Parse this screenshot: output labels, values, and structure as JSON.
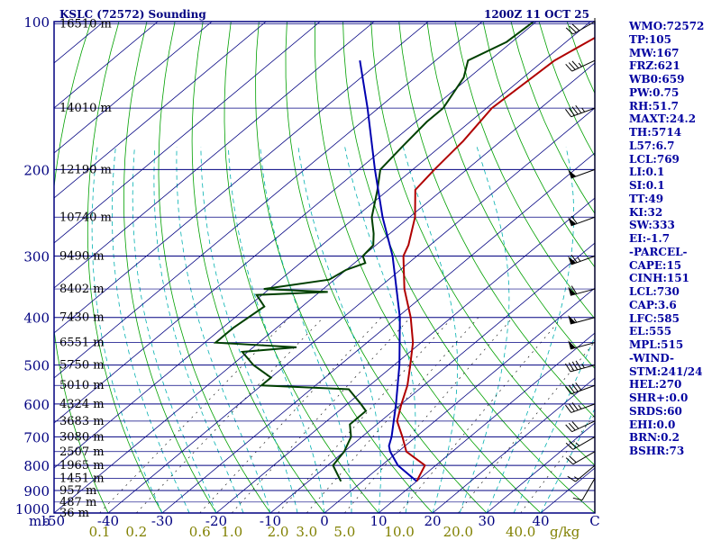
{
  "header": {
    "station": "KSLC (72572) Sounding",
    "time": "1200Z 11 OCT 25"
  },
  "colors": {
    "frame": "#000080",
    "temperature": "#b00000",
    "dewpoint": "#004000",
    "parcel": "#0000b0",
    "dry_adiabat": "#00a000",
    "moist_adiabat": "#00b0b0",
    "mixing_ratio": "#000000",
    "index_text": "#0000a0",
    "mr_label": "#808000"
  },
  "chart_data": {
    "type": "skew-t",
    "pressure_axis_unit": "mb",
    "pressure_levels": [
      100,
      200,
      300,
      400,
      500,
      600,
      700,
      800,
      900,
      1000
    ],
    "isobar_labels": [
      "100",
      "200",
      "300",
      "400",
      "500",
      "600",
      "700",
      "800",
      "900",
      "1000"
    ],
    "temperature_ticks": [
      -50,
      -40,
      -30,
      -20,
      -10,
      0,
      10,
      20,
      30,
      40
    ],
    "temperature_tick_labels": [
      "-50",
      "-40",
      "-30",
      "-20",
      "-10",
      "0",
      "10",
      "20",
      "30",
      "40"
    ],
    "temperature_last_label": "C",
    "xlim_at_1000mb": [
      -50,
      50
    ],
    "ylim": [
      1000,
      100
    ],
    "mixing_ratio_labels": [
      "0.1",
      "0.2",
      "0.6",
      "1.0",
      "2.0",
      "3.0",
      "5.0",
      "10.0",
      "20.0",
      "40.0"
    ],
    "mixing_ratio_unit": "g/kg",
    "height_labels": [
      {
        "p": 101,
        "text": "16510 m"
      },
      {
        "p": 150,
        "text": "14010 m"
      },
      {
        "p": 200,
        "text": "12190 m"
      },
      {
        "p": 250,
        "text": "10740 m"
      },
      {
        "p": 300,
        "text": "9490 m"
      },
      {
        "p": 350,
        "text": "8402 m"
      },
      {
        "p": 400,
        "text": "7430 m"
      },
      {
        "p": 450,
        "text": "6551 m"
      },
      {
        "p": 500,
        "text": "5750 m"
      },
      {
        "p": 550,
        "text": "5010 m"
      },
      {
        "p": 600,
        "text": "4324 m"
      },
      {
        "p": 650,
        "text": "3683 m"
      },
      {
        "p": 700,
        "text": "3080 m"
      },
      {
        "p": 750,
        "text": "2507 m"
      },
      {
        "p": 800,
        "text": "1965 m"
      },
      {
        "p": 850,
        "text": "1451 m"
      },
      {
        "p": 900,
        "text": "957 m"
      },
      {
        "p": 950,
        "text": "487 m"
      },
      {
        "p": 1000,
        "text": "36 m"
      }
    ],
    "series": [
      {
        "name": "Temperature",
        "points": [
          {
            "p": 862,
            "t": 10.0
          },
          {
            "p": 800,
            "t": 8.0
          },
          {
            "p": 750,
            "t": 1.5
          },
          {
            "p": 700,
            "t": -2.5
          },
          {
            "p": 650,
            "t": -7.0
          },
          {
            "p": 600,
            "t": -10.0
          },
          {
            "p": 550,
            "t": -13.0
          },
          {
            "p": 500,
            "t": -17.0
          },
          {
            "p": 450,
            "t": -21.5
          },
          {
            "p": 400,
            "t": -27.5
          },
          {
            "p": 350,
            "t": -35.0
          },
          {
            "p": 300,
            "t": -42.5
          },
          {
            "p": 285,
            "t": -44.0
          },
          {
            "p": 250,
            "t": -49.0
          },
          {
            "p": 220,
            "t": -55.0
          },
          {
            "p": 200,
            "t": -56.0
          },
          {
            "p": 175,
            "t": -57.0
          },
          {
            "p": 150,
            "t": -59.0
          },
          {
            "p": 120,
            "t": -58.0
          },
          {
            "p": 105,
            "t": -55.0
          },
          {
            "p": 100,
            "t": -52.5
          }
        ]
      },
      {
        "name": "Dewpoint",
        "points": [
          {
            "p": 862,
            "t": -4.0
          },
          {
            "p": 800,
            "t": -9.0
          },
          {
            "p": 750,
            "t": -10.0
          },
          {
            "p": 700,
            "t": -12.0
          },
          {
            "p": 660,
            "t": -15.0
          },
          {
            "p": 620,
            "t": -15.0
          },
          {
            "p": 600,
            "t": -17.5
          },
          {
            "p": 560,
            "t": -23.0
          },
          {
            "p": 550,
            "t": -40.0
          },
          {
            "p": 530,
            "t": -40.0
          },
          {
            "p": 500,
            "t": -46.0
          },
          {
            "p": 470,
            "t": -51.0
          },
          {
            "p": 460,
            "t": -42.0
          },
          {
            "p": 450,
            "t": -58.0
          },
          {
            "p": 420,
            "t": -58.0
          },
          {
            "p": 380,
            "t": -57.0
          },
          {
            "p": 360,
            "t": -61.0
          },
          {
            "p": 355,
            "t": -48.5
          },
          {
            "p": 350,
            "t": -61.0
          },
          {
            "p": 335,
            "t": -51.0
          },
          {
            "p": 320,
            "t": -50.0
          },
          {
            "p": 310,
            "t": -48.0
          },
          {
            "p": 300,
            "t": -50.0
          },
          {
            "p": 285,
            "t": -50.5
          },
          {
            "p": 270,
            "t": -53.0
          },
          {
            "p": 250,
            "t": -57.0
          },
          {
            "p": 220,
            "t": -62.0
          },
          {
            "p": 200,
            "t": -66.0
          },
          {
            "p": 180,
            "t": -67.0
          },
          {
            "p": 160,
            "t": -68.0
          },
          {
            "p": 150,
            "t": -68.0
          },
          {
            "p": 130,
            "t": -71.0
          },
          {
            "p": 120,
            "t": -74.0
          },
          {
            "p": 110,
            "t": -71.0
          },
          {
            "p": 100,
            "t": -70.5
          }
        ]
      },
      {
        "name": "Parcel",
        "points": [
          {
            "p": 862,
            "t": 10.0
          },
          {
            "p": 800,
            "t": 3.0
          },
          {
            "p": 750,
            "t": -1.5
          },
          {
            "p": 730,
            "t": -3.0
          },
          {
            "p": 700,
            "t": -4.5
          },
          {
            "p": 600,
            "t": -11.0
          },
          {
            "p": 500,
            "t": -19.0
          },
          {
            "p": 400,
            "t": -29.5
          },
          {
            "p": 300,
            "t": -44.5
          },
          {
            "p": 250,
            "t": -55.0
          },
          {
            "p": 200,
            "t": -67.0
          },
          {
            "p": 150,
            "t": -82.0
          },
          {
            "p": 120,
            "t": -94.0
          }
        ]
      }
    ],
    "wind_barbs": [
      {
        "p": 850,
        "dir": 210,
        "kt": 10
      },
      {
        "p": 800,
        "dir": 230,
        "kt": 15
      },
      {
        "p": 750,
        "dir": 240,
        "kt": 20
      },
      {
        "p": 700,
        "dir": 240,
        "kt": 25
      },
      {
        "p": 650,
        "dir": 245,
        "kt": 30
      },
      {
        "p": 600,
        "dir": 250,
        "kt": 35
      },
      {
        "p": 550,
        "dir": 250,
        "kt": 40
      },
      {
        "p": 500,
        "dir": 255,
        "kt": 45
      },
      {
        "p": 450,
        "dir": 255,
        "kt": 50
      },
      {
        "p": 400,
        "dir": 255,
        "kt": 55
      },
      {
        "p": 350,
        "dir": 255,
        "kt": 60
      },
      {
        "p": 300,
        "dir": 250,
        "kt": 65
      },
      {
        "p": 250,
        "dir": 250,
        "kt": 60
      },
      {
        "p": 200,
        "dir": 250,
        "kt": 50
      },
      {
        "p": 150,
        "dir": 250,
        "kt": 45
      },
      {
        "p": 120,
        "dir": 245,
        "kt": 35
      },
      {
        "p": 100,
        "dir": 240,
        "kt": 30
      }
    ]
  },
  "indices": [
    "WMO:72572",
    "TP:105",
    "MW:167",
    "FRZ:621",
    "WB0:659",
    "PW:0.75",
    "RH:51.7",
    "MAXT:24.2",
    "TH:5714",
    "L57:6.7",
    "LCL:769",
    "LI:0.1",
    "SI:0.1",
    "TT:49",
    "KI:32",
    "SW:333",
    "EI:-1.7",
    "-PARCEL-",
    "CAPE:15",
    "CINH:151",
    "LCL:730",
    "CAP:3.6",
    "LFC:585",
    "EL:555",
    "MPL:515",
    "-WIND-",
    "STM:241/24",
    "HEL:270",
    "SHR+:0.0",
    "SRDS:60",
    "EHI:0.0",
    "BRN:0.2",
    "BSHR:73"
  ]
}
